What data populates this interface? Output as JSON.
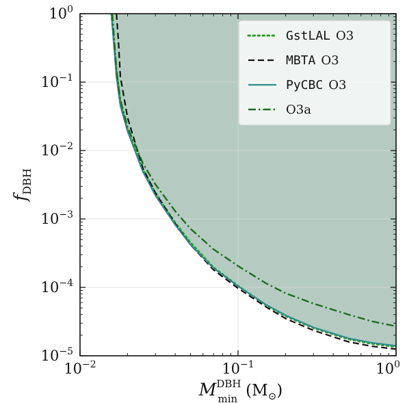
{
  "chart_data": {
    "type": "line",
    "xscale": "log",
    "yscale": "log",
    "xlim": [
      0.01,
      1
    ],
    "ylim": [
      1e-05,
      1
    ],
    "grid": true,
    "xlabel": {
      "main": "M",
      "sup": "DBH",
      "sub": "min",
      "unit_open": "(M",
      "unit_sub": "⊙",
      "unit_close": ")"
    },
    "ylabel": {
      "main": "f",
      "sub": "DBH"
    },
    "x_ticks": [
      {
        "value": 0.01,
        "base": "10",
        "exp": "−2"
      },
      {
        "value": 0.1,
        "base": "10",
        "exp": "−1"
      },
      {
        "value": 1,
        "base": "10",
        "exp": "0"
      }
    ],
    "y_ticks": [
      {
        "value": 1,
        "base": "10",
        "exp": "0"
      },
      {
        "value": 0.1,
        "base": "10",
        "exp": "−1"
      },
      {
        "value": 0.01,
        "base": "10",
        "exp": "−2"
      },
      {
        "value": 0.001,
        "base": "10",
        "exp": "−3"
      },
      {
        "value": 0.0001,
        "base": "10",
        "exp": "−4"
      },
      {
        "value": 1e-05,
        "base": "10",
        "exp": "−5"
      }
    ],
    "legend_position": "top-right",
    "fill_color": "#b5cbc2",
    "excluded_region_boundary_series": "PyCBC O3",
    "series": [
      {
        "name": "GstLAL O3",
        "name_code": "GstLAL",
        "name_rest": "O3",
        "color": "#2e9a2e",
        "dash": "dotted",
        "x": [
          0.0158,
          0.017,
          0.018,
          0.02,
          0.025,
          0.03,
          0.04,
          0.05,
          0.07,
          0.1,
          0.15,
          0.2,
          0.3,
          0.5,
          0.7,
          1.0
        ],
        "y": [
          1.0,
          0.15,
          0.05,
          0.02,
          0.0053,
          0.0024,
          0.00088,
          0.00045,
          0.000195,
          0.000105,
          5.5e-05,
          3.8e-05,
          2.55e-05,
          1.75e-05,
          1.5e-05,
          1.35e-05
        ]
      },
      {
        "name": "MBTA O3",
        "name_code": "MBTA",
        "name_rest": "O3",
        "color": "#111111",
        "dash": "dashed",
        "x": [
          0.017,
          0.0175,
          0.018,
          0.02,
          0.025,
          0.03,
          0.04,
          0.05,
          0.07,
          0.1,
          0.15,
          0.2,
          0.3,
          0.5,
          0.7,
          1.0
        ],
        "y": [
          1.0,
          0.4,
          0.12,
          0.03,
          0.0055,
          0.0024,
          0.00085,
          0.00042,
          0.00018,
          9.7e-05,
          5.2e-05,
          3.5e-05,
          2.35e-05,
          1.6e-05,
          1.38e-05,
          1.25e-05
        ]
      },
      {
        "name": "PyCBC O3",
        "name_code": "PyCBC",
        "name_rest": "O3",
        "color": "#2e8b8b",
        "dash": "solid",
        "x": [
          0.0158,
          0.017,
          0.018,
          0.02,
          0.025,
          0.03,
          0.04,
          0.05,
          0.07,
          0.1,
          0.15,
          0.2,
          0.3,
          0.5,
          0.7,
          1.0
        ],
        "y": [
          1.0,
          0.12,
          0.045,
          0.019,
          0.0049,
          0.0022,
          0.00082,
          0.00042,
          0.00019,
          0.000104,
          5.6e-05,
          3.9e-05,
          2.6e-05,
          1.8e-05,
          1.55e-05,
          1.4e-05
        ]
      },
      {
        "name": "O3a",
        "name_code": "",
        "name_rest": "O3a",
        "color": "#1f6b1f",
        "dash": "dashdot",
        "x": [
          0.016,
          0.017,
          0.018,
          0.02,
          0.025,
          0.03,
          0.04,
          0.05,
          0.07,
          0.1,
          0.15,
          0.2,
          0.3,
          0.5,
          0.7,
          1.0
        ],
        "y": [
          1.0,
          0.15,
          0.055,
          0.022,
          0.0065,
          0.0032,
          0.0013,
          0.00072,
          0.00036,
          0.000205,
          0.000115,
          8.2e-05,
          5.8e-05,
          4e-05,
          3.2e-05,
          2.7e-05
        ]
      }
    ]
  }
}
